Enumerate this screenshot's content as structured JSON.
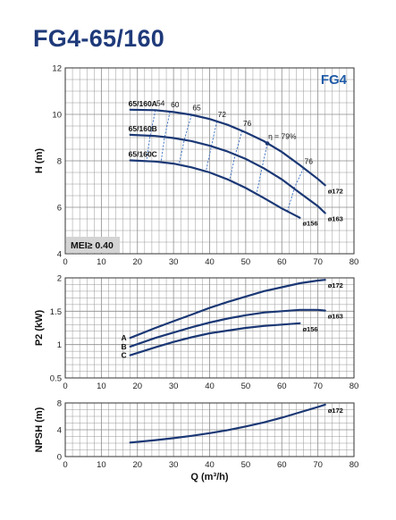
{
  "title": "FG4-65/160",
  "chart_data": [
    {
      "type": "line",
      "id": "head",
      "xlim": [
        0,
        80
      ],
      "ylim": [
        4,
        12
      ],
      "xticks": [
        0,
        10,
        20,
        30,
        40,
        50,
        60,
        70,
        80
      ],
      "yticks": [
        4,
        6,
        8,
        10,
        12
      ],
      "ylabel": "H (m)",
      "tag": "FG4",
      "mei": "MEI≥ 0.40",
      "series": [
        {
          "name": "65/160A",
          "diameter": "ø172",
          "points": [
            [
              18,
              10.2
            ],
            [
              25,
              10.18
            ],
            [
              30,
              10.1
            ],
            [
              35,
              9.98
            ],
            [
              40,
              9.8
            ],
            [
              45,
              9.55
            ],
            [
              50,
              9.22
            ],
            [
              55,
              8.85
            ],
            [
              60,
              8.38
            ],
            [
              65,
              7.82
            ],
            [
              70,
              7.22
            ],
            [
              72,
              6.95
            ]
          ]
        },
        {
          "name": "65/160B",
          "diameter": "ø163",
          "points": [
            [
              18,
              9.12
            ],
            [
              25,
              9.07
            ],
            [
              30,
              8.98
            ],
            [
              35,
              8.85
            ],
            [
              40,
              8.65
            ],
            [
              45,
              8.4
            ],
            [
              50,
              8.08
            ],
            [
              55,
              7.68
            ],
            [
              60,
              7.2
            ],
            [
              65,
              6.62
            ],
            [
              70,
              6.05
            ],
            [
              72,
              5.75
            ]
          ]
        },
        {
          "name": "65/160C",
          "diameter": "ø156",
          "points": [
            [
              18,
              8.02
            ],
            [
              25,
              7.97
            ],
            [
              30,
              7.88
            ],
            [
              35,
              7.72
            ],
            [
              40,
              7.5
            ],
            [
              45,
              7.2
            ],
            [
              50,
              6.83
            ],
            [
              55,
              6.4
            ],
            [
              60,
              5.95
            ],
            [
              65,
              5.55
            ]
          ]
        }
      ],
      "efficiency": [
        {
          "label": "54",
          "points": [
            [
              25,
              10.18
            ],
            [
              23.5,
              9.06
            ],
            [
              22.5,
              7.98
            ]
          ]
        },
        {
          "label": "60",
          "points": [
            [
              29,
              10.11
            ],
            [
              27.5,
              8.99
            ],
            [
              26.5,
              7.91
            ]
          ]
        },
        {
          "label": "65",
          "points": [
            [
              35,
              9.98
            ],
            [
              33,
              8.9
            ],
            [
              31.5,
              7.84
            ]
          ]
        },
        {
          "label": "72",
          "points": [
            [
              42,
              9.7
            ],
            [
              40.5,
              8.63
            ],
            [
              39,
              7.56
            ]
          ]
        },
        {
          "label": "76",
          "points": [
            [
              49,
              9.3
            ],
            [
              47,
              8.2
            ],
            [
              45.5,
              7.15
            ]
          ]
        },
        {
          "label": "η = 79%",
          "points": [
            [
              56,
              8.75
            ],
            [
              54.5,
              7.68
            ],
            [
              53,
              6.58
            ]
          ]
        },
        {
          "label": "76",
          "points": [
            [
              66,
              7.68
            ],
            [
              63.5,
              6.84
            ],
            [
              61.5,
              5.8
            ]
          ]
        }
      ],
      "bep": [
        56,
        8.75
      ]
    },
    {
      "type": "line",
      "id": "power",
      "xlim": [
        0,
        80
      ],
      "ylim": [
        0.5,
        2
      ],
      "xticks": [
        0,
        10,
        20,
        30,
        40,
        50,
        60,
        70,
        80
      ],
      "yticks": [
        0.5,
        1,
        1.5,
        2
      ],
      "ylabel": "P2 (kW)",
      "series": [
        {
          "name": "A",
          "diameter": "ø172",
          "points": [
            [
              18,
              1.1
            ],
            [
              25,
              1.25
            ],
            [
              30,
              1.35
            ],
            [
              35,
              1.45
            ],
            [
              40,
              1.55
            ],
            [
              45,
              1.64
            ],
            [
              50,
              1.72
            ],
            [
              55,
              1.8
            ],
            [
              60,
              1.86
            ],
            [
              65,
              1.92
            ],
            [
              70,
              1.96
            ],
            [
              72,
              1.97
            ]
          ]
        },
        {
          "name": "B",
          "diameter": "ø163",
          "points": [
            [
              18,
              0.97
            ],
            [
              25,
              1.1
            ],
            [
              30,
              1.18
            ],
            [
              35,
              1.26
            ],
            [
              40,
              1.33
            ],
            [
              45,
              1.39
            ],
            [
              50,
              1.44
            ],
            [
              55,
              1.48
            ],
            [
              60,
              1.5
            ],
            [
              65,
              1.52
            ],
            [
              70,
              1.52
            ],
            [
              72,
              1.51
            ]
          ]
        },
        {
          "name": "C",
          "diameter": "ø156",
          "points": [
            [
              18,
              0.84
            ],
            [
              25,
              0.96
            ],
            [
              30,
              1.04
            ],
            [
              35,
              1.11
            ],
            [
              40,
              1.17
            ],
            [
              45,
              1.21
            ],
            [
              50,
              1.25
            ],
            [
              55,
              1.28
            ],
            [
              60,
              1.3
            ],
            [
              65,
              1.32
            ]
          ]
        }
      ]
    },
    {
      "type": "line",
      "id": "npsh",
      "xlim": [
        0,
        80
      ],
      "ylim": [
        0,
        8
      ],
      "xticks": [
        0,
        10,
        20,
        30,
        40,
        50,
        60,
        70,
        80
      ],
      "yticks": [
        0,
        4,
        8
      ],
      "ylabel": "NPSH (m)",
      "xlabel": "Q (m³/h)",
      "series": [
        {
          "name": "NPSH",
          "diameter": "ø172",
          "points": [
            [
              18,
              2.1
            ],
            [
              25,
              2.45
            ],
            [
              30,
              2.75
            ],
            [
              35,
              3.1
            ],
            [
              40,
              3.5
            ],
            [
              45,
              3.95
            ],
            [
              50,
              4.5
            ],
            [
              55,
              5.1
            ],
            [
              60,
              5.8
            ],
            [
              65,
              6.6
            ],
            [
              70,
              7.4
            ],
            [
              72,
              7.75
            ]
          ]
        }
      ]
    }
  ],
  "colors": {
    "curve": "#1b3875",
    "grid": "#8c8c8c",
    "frame": "#333333",
    "tag": "#1f5ba8",
    "mei_bg": "#d4d4d4",
    "efficiency": "#3a6fc2"
  }
}
